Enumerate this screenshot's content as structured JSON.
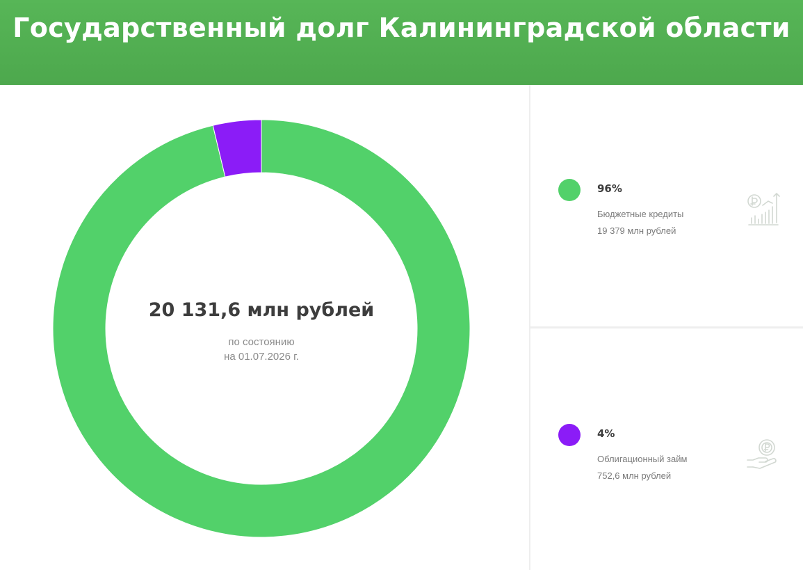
{
  "header": {
    "title": "Государственный долг Калининградской области"
  },
  "center": {
    "total": "20 131,6 млн рублей",
    "subtitle_line1": "по состоянию",
    "subtitle_line2": "на 01.07.2026 г."
  },
  "colors": {
    "header_bg": "#52b052",
    "green": "#52d16a",
    "purple": "#8b1cf7",
    "icon": "#cfd8cf"
  },
  "chart_data": {
    "type": "pie",
    "donut": true,
    "title": "Государственный долг Калининградской области",
    "total_label": "20 131,6 млн рублей",
    "slices": [
      {
        "name": "Бюджетные кредиты",
        "percent": 96,
        "value": 19379,
        "value_label": "19 379 млн рублей",
        "color": "#52d16a"
      },
      {
        "name": "Облигационный займ",
        "percent": 4,
        "value": 752.6,
        "value_label": "752,6 млн рублей",
        "color": "#8b1cf7"
      }
    ],
    "legend_position": "right"
  },
  "legend": [
    {
      "percent_label": "96%",
      "label": "Бюджетные кредиты",
      "value_label": "19 379 млн рублей",
      "color": "#52d16a",
      "icon": "coin-growth-chart-icon"
    },
    {
      "percent_label": "4%",
      "label": "Облигационный займ",
      "value_label": "752,6 млн рублей",
      "color": "#8b1cf7",
      "icon": "hand-coin-icon"
    }
  ]
}
